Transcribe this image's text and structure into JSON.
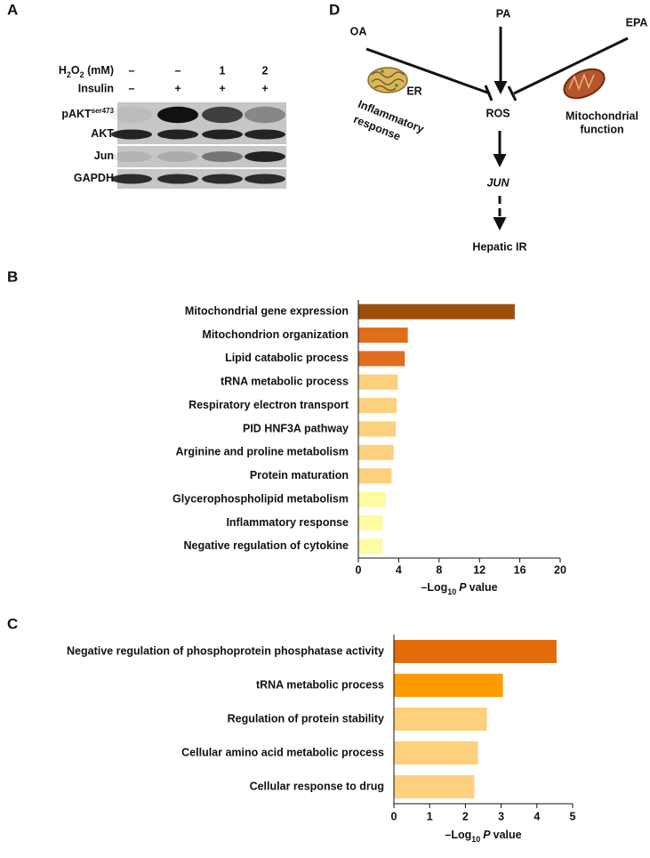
{
  "panel_labels": [
    "A",
    "B",
    "C",
    "D"
  ],
  "blot": {
    "conditions": [
      {
        "label": [
          "H",
          "2",
          "O",
          "2",
          " (mM)"
        ],
        "lanes": [
          "–",
          "–",
          "1",
          "2"
        ]
      },
      {
        "label": "Insulin",
        "lanes": [
          "–",
          "+",
          "+",
          "+"
        ]
      }
    ],
    "rows": [
      {
        "label": "pAKT",
        "sup": "ser473"
      },
      {
        "label": "AKT"
      },
      {
        "label": "Jun"
      },
      {
        "label": "GAPDH"
      }
    ]
  },
  "pathway": {
    "oa": "OA",
    "pa": "PA",
    "epa": "EPA",
    "er": "ER",
    "inflammatory": [
      "Inflammatory",
      "response"
    ],
    "ros": "ROS",
    "mito": [
      "Mitochondrial",
      "function"
    ],
    "jun": "JUN",
    "ir": "Hepatic IR"
  },
  "chart_data": [
    {
      "type": "bar",
      "orientation": "horizontal",
      "categories": [
        "Mitochondrial gene expression",
        "Mitochondrion organization",
        "Lipid catabolic process",
        "tRNA metabolic process",
        "Respiratory electron transport",
        "PID HNF3A pathway",
        "Arginine and proline metabolism",
        "Protein maturation",
        "Glycerophospholipid metabolism",
        "Inflammatory response",
        "Negative regulation of cytokine"
      ],
      "values": [
        15.5,
        4.9,
        4.6,
        3.9,
        3.8,
        3.7,
        3.5,
        3.3,
        2.7,
        2.4,
        2.4
      ],
      "colors": [
        "#9e4f0e",
        "#e06d1b",
        "#e06d1b",
        "#fcd07c",
        "#fcd07c",
        "#fcd07c",
        "#fcd07c",
        "#fcd07c",
        "#fefba0",
        "#fefba0",
        "#fefba0"
      ],
      "xlim": [
        0,
        20
      ],
      "xticks": [
        0,
        4,
        8,
        12,
        16,
        20
      ],
      "xlabel": {
        "pre": "–Log",
        "sub": "10",
        "italic": "P",
        "post": "value"
      }
    },
    {
      "type": "bar",
      "orientation": "horizontal",
      "categories": [
        "Negative regulation of phosphoprotein phosphatase activity",
        "tRNA metabolic process",
        "Regulation of protein stability",
        "Cellular amino acid metabolic process",
        "Cellular response to drug"
      ],
      "values": [
        4.55,
        3.05,
        2.6,
        2.35,
        2.25
      ],
      "colors": [
        "#e36c0a",
        "#ff9a00",
        "#fcd07c",
        "#fcd07c",
        "#fcd07c"
      ],
      "xlim": [
        0,
        5
      ],
      "xticks": [
        0,
        1,
        2,
        3,
        4,
        5
      ],
      "xlabel": {
        "pre": "–Log",
        "sub": "10",
        "italic": "P",
        "post": "value"
      }
    }
  ]
}
